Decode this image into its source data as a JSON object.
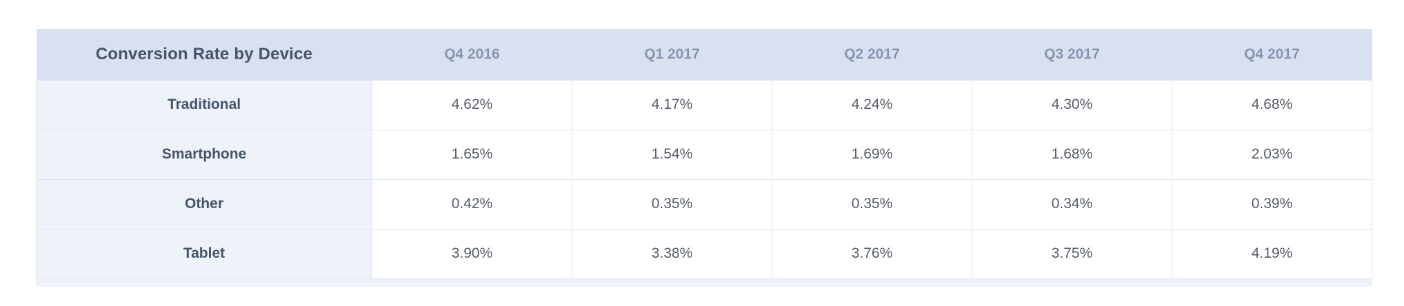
{
  "colors": {
    "header_bg": "#d9e1f1",
    "label_col_bg": "#eef2f9",
    "border": "#dde4f0",
    "title_text": "#44546a",
    "quarter_header_text": "#8496b0",
    "value_text": "#565d6a"
  },
  "table": {
    "title": "Conversion Rate by Device",
    "columns": [
      "Q4 2016",
      "Q1 2017",
      "Q2 2017",
      "Q3 2017",
      "Q4 2017"
    ],
    "rows": [
      {
        "label": "Traditional",
        "values": [
          "4.62%",
          "4.17%",
          "4.24%",
          "4.30%",
          "4.68%"
        ]
      },
      {
        "label": "Smartphone",
        "values": [
          "1.65%",
          "1.54%",
          "1.69%",
          "1.68%",
          "2.03%"
        ]
      },
      {
        "label": "Other",
        "values": [
          "0.42%",
          "0.35%",
          "0.35%",
          "0.34%",
          "0.39%"
        ]
      },
      {
        "label": "Tablet",
        "values": [
          "3.90%",
          "3.38%",
          "3.76%",
          "3.75%",
          "4.19%"
        ]
      }
    ]
  },
  "chart_data": {
    "type": "table",
    "title": "Conversion Rate by Device",
    "categories": [
      "Q4 2016",
      "Q1 2017",
      "Q2 2017",
      "Q3 2017",
      "Q4 2017"
    ],
    "series": [
      {
        "name": "Traditional",
        "values": [
          4.62,
          4.17,
          4.24,
          4.3,
          4.68
        ]
      },
      {
        "name": "Smartphone",
        "values": [
          1.65,
          1.54,
          1.69,
          1.68,
          2.03
        ]
      },
      {
        "name": "Other",
        "values": [
          0.42,
          0.35,
          0.35,
          0.34,
          0.39
        ]
      },
      {
        "name": "Tablet",
        "values": [
          3.9,
          3.38,
          3.76,
          3.75,
          4.19
        ]
      }
    ],
    "unit": "%",
    "ylabel": "Conversion Rate"
  }
}
